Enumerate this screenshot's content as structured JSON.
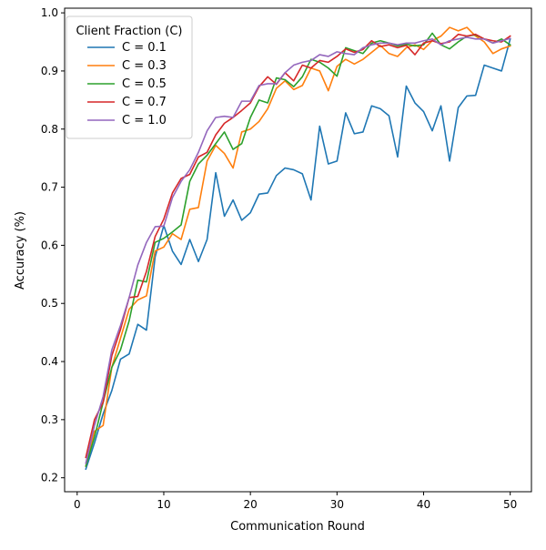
{
  "chart_data": {
    "type": "line",
    "title": "",
    "xlabel": "Communication Round",
    "ylabel": "Accuracy (%)",
    "xlim": [
      -1.45,
      52.45
    ],
    "ylim": [
      0.176,
      1.008
    ],
    "xticks": [
      0,
      10,
      20,
      30,
      40,
      50
    ],
    "yticks": [
      0.2,
      0.3,
      0.4,
      0.5,
      0.6,
      0.7,
      0.8,
      0.9,
      1.0
    ],
    "xtick_labels": [
      "0",
      "10",
      "20",
      "30",
      "40",
      "50"
    ],
    "ytick_labels": [
      "0.2",
      "0.3",
      "0.4",
      "0.5",
      "0.6",
      "0.7",
      "0.8",
      "0.9",
      "1.0"
    ],
    "grid": false,
    "legend": {
      "title": "Client Fraction (C)",
      "position": "upper-left"
    },
    "x": [
      1,
      2,
      3,
      4,
      5,
      6,
      7,
      8,
      9,
      10,
      11,
      12,
      13,
      14,
      15,
      16,
      17,
      18,
      19,
      20,
      21,
      22,
      23,
      24,
      25,
      26,
      27,
      28,
      29,
      30,
      31,
      32,
      33,
      34,
      35,
      36,
      37,
      38,
      39,
      40,
      41,
      42,
      43,
      44,
      45,
      46,
      47,
      48,
      49,
      50
    ],
    "series": [
      {
        "name": "C = 0.1",
        "color": "#1f77b4",
        "values": [
          0.215,
          0.26,
          0.31,
          0.35,
          0.404,
          0.413,
          0.464,
          0.454,
          0.58,
          0.634,
          0.59,
          0.567,
          0.61,
          0.572,
          0.61,
          0.725,
          0.65,
          0.678,
          0.643,
          0.656,
          0.688,
          0.69,
          0.72,
          0.733,
          0.73,
          0.723,
          0.678,
          0.805,
          0.74,
          0.745,
          0.828,
          0.792,
          0.795,
          0.84,
          0.835,
          0.823,
          0.752,
          0.874,
          0.845,
          0.83,
          0.797,
          0.84,
          0.745,
          0.837,
          0.857,
          0.858,
          0.91,
          0.905,
          0.9,
          0.955
        ]
      },
      {
        "name": "C = 0.3",
        "color": "#ff7f0e",
        "values": [
          0.22,
          0.28,
          0.29,
          0.39,
          0.44,
          0.49,
          0.506,
          0.513,
          0.59,
          0.597,
          0.62,
          0.61,
          0.662,
          0.665,
          0.745,
          0.772,
          0.758,
          0.733,
          0.795,
          0.8,
          0.813,
          0.835,
          0.87,
          0.883,
          0.868,
          0.875,
          0.905,
          0.9,
          0.866,
          0.908,
          0.92,
          0.912,
          0.92,
          0.932,
          0.944,
          0.93,
          0.925,
          0.94,
          0.945,
          0.937,
          0.952,
          0.96,
          0.975,
          0.969,
          0.975,
          0.96,
          0.95,
          0.93,
          0.938,
          0.943
        ]
      },
      {
        "name": "C = 0.5",
        "color": "#2ca02c",
        "values": [
          0.22,
          0.27,
          0.33,
          0.39,
          0.42,
          0.47,
          0.54,
          0.537,
          0.605,
          0.612,
          0.623,
          0.635,
          0.71,
          0.74,
          0.755,
          0.775,
          0.795,
          0.765,
          0.775,
          0.82,
          0.85,
          0.845,
          0.888,
          0.885,
          0.873,
          0.89,
          0.92,
          0.915,
          0.905,
          0.891,
          0.94,
          0.935,
          0.93,
          0.948,
          0.952,
          0.948,
          0.943,
          0.946,
          0.943,
          0.945,
          0.965,
          0.945,
          0.938,
          0.95,
          0.96,
          0.962,
          0.955,
          0.948,
          0.955,
          0.945
        ]
      },
      {
        "name": "C = 0.7",
        "color": "#d62728",
        "values": [
          0.235,
          0.3,
          0.33,
          0.41,
          0.455,
          0.51,
          0.512,
          0.555,
          0.615,
          0.645,
          0.69,
          0.715,
          0.722,
          0.752,
          0.76,
          0.79,
          0.81,
          0.82,
          0.832,
          0.845,
          0.873,
          0.89,
          0.877,
          0.897,
          0.883,
          0.91,
          0.905,
          0.918,
          0.915,
          0.925,
          0.938,
          0.932,
          0.937,
          0.952,
          0.942,
          0.945,
          0.94,
          0.944,
          0.928,
          0.948,
          0.952,
          0.947,
          0.95,
          0.963,
          0.96,
          0.963,
          0.955,
          0.952,
          0.95,
          0.96
        ]
      },
      {
        "name": "C = 1.0",
        "color": "#9467bd",
        "values": [
          0.225,
          0.29,
          0.34,
          0.42,
          0.462,
          0.51,
          0.566,
          0.605,
          0.632,
          0.633,
          0.682,
          0.71,
          0.73,
          0.76,
          0.797,
          0.82,
          0.822,
          0.82,
          0.848,
          0.848,
          0.875,
          0.878,
          0.878,
          0.897,
          0.91,
          0.915,
          0.918,
          0.928,
          0.925,
          0.933,
          0.93,
          0.928,
          0.94,
          0.945,
          0.948,
          0.948,
          0.945,
          0.948,
          0.948,
          0.952,
          0.955,
          0.945,
          0.952,
          0.955,
          0.958,
          0.955,
          0.955,
          0.948,
          0.952,
          0.956
        ]
      }
    ]
  }
}
